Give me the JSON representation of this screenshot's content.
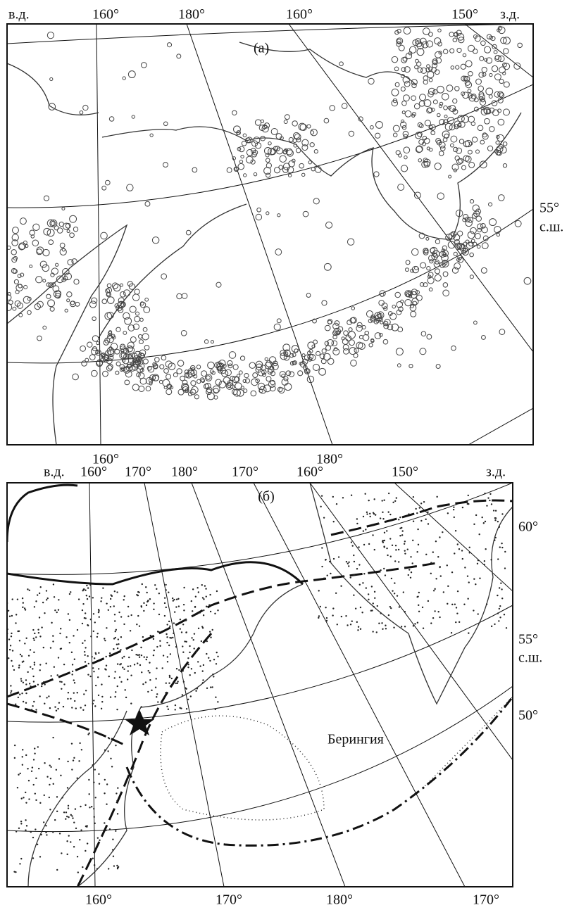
{
  "panels": [
    {
      "label": "(а)",
      "top_labels": [
        "в.д.",
        "160°",
        "180°",
        "160°",
        "150°",
        "з.д."
      ],
      "right_labels": [
        "55°",
        "с.ш."
      ],
      "bottom_labels": [
        "160°",
        "180°"
      ]
    },
    {
      "label": "(б)",
      "top_labels": [
        "в.д.",
        "160°",
        "170°",
        "180°",
        "170°",
        "160°",
        "150°",
        "з.д."
      ],
      "right_labels": [
        "60°",
        "55°",
        "с.ш.",
        "50°"
      ],
      "bottom_labels": [
        "160°",
        "170°",
        "180°",
        "170°"
      ],
      "region_label": "Берингия"
    }
  ]
}
